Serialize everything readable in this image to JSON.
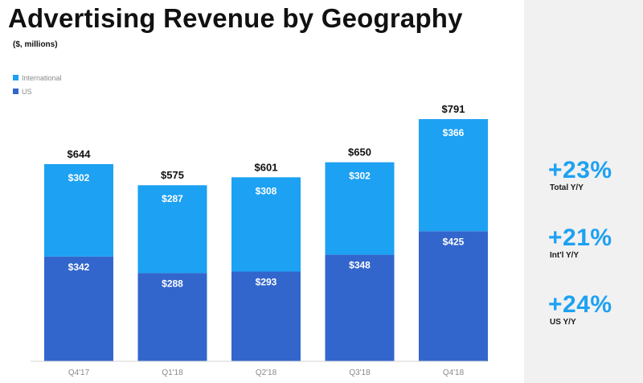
{
  "title": "Advertising Revenue by Geography",
  "subtitle": "($, millions)",
  "legend": [
    {
      "label": "International",
      "color": "#1da1f2"
    },
    {
      "label": "US",
      "color": "#3366cc"
    }
  ],
  "colors": {
    "international": "#1da1f2",
    "us": "#3366cc",
    "side_panel": "#f1f1f1",
    "kpi": "#1da1f2"
  },
  "chart_data": {
    "type": "bar",
    "stacked": true,
    "categories": [
      "Q4'17",
      "Q1'18",
      "Q2'18",
      "Q3'18",
      "Q4'18"
    ],
    "series": [
      {
        "name": "US",
        "values": [
          342,
          288,
          293,
          348,
          425
        ],
        "labels": [
          "$342",
          "$288",
          "$293",
          "$348",
          "$425"
        ]
      },
      {
        "name": "International",
        "values": [
          302,
          287,
          308,
          302,
          366
        ],
        "labels": [
          "$302",
          "$287",
          "$308",
          "$302",
          "$366"
        ]
      }
    ],
    "totals": [
      644,
      575,
      601,
      650,
      791
    ],
    "total_labels": [
      "$644",
      "$575",
      "$601",
      "$650",
      "$791"
    ],
    "title": "Advertising Revenue by Geography",
    "xlabel": "",
    "ylabel": "",
    "ylim": [
      0,
      850
    ],
    "grid": false,
    "legend_position": "top-left"
  },
  "kpis": [
    {
      "value": "+23%",
      "label": "Total Y/Y"
    },
    {
      "value": "+21%",
      "label": "Int'l Y/Y"
    },
    {
      "value": "+24%",
      "label": "US Y/Y"
    }
  ]
}
